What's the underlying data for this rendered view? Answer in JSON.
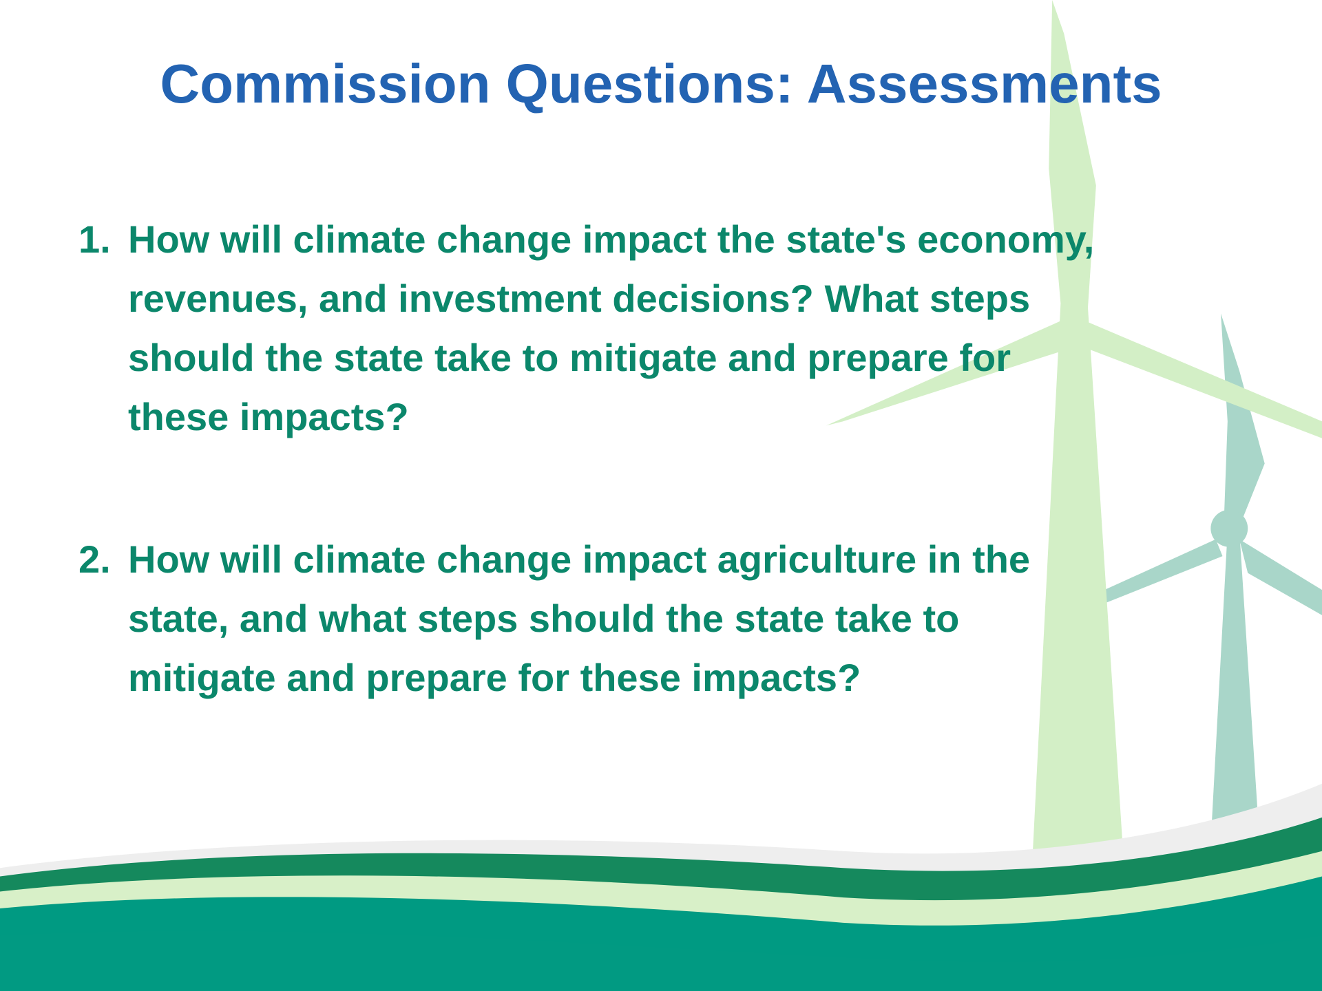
{
  "header": {
    "title": "Commission Questions: Assessments"
  },
  "items": [
    {
      "marker": "1.",
      "lines": [
        "How will climate change impact the state's economy,",
        "revenues, and investment decisions? What steps",
        "should the state take to mitigate and prepare for",
        "these impacts?"
      ]
    },
    {
      "marker": "2.",
      "lines": [
        "How will climate change impact agriculture in the",
        "state, and what steps should the state take to",
        "mitigate and prepare for these impacts?"
      ]
    }
  ]
}
